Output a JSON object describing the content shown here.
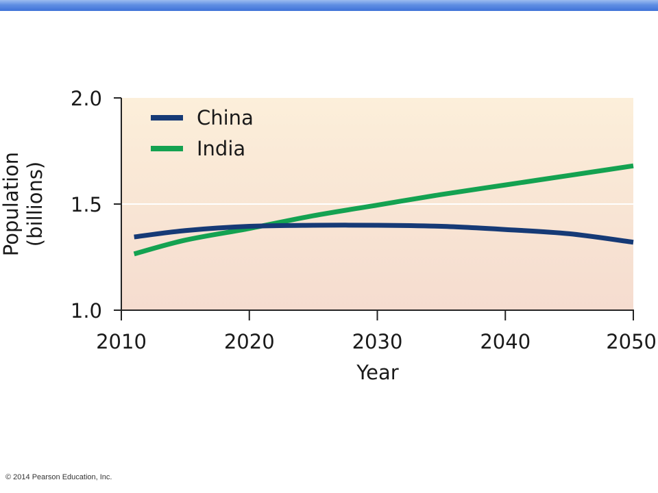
{
  "footer": {
    "copyright": "© 2014 Pearson Education, Inc."
  },
  "colors": {
    "china": "#163a76",
    "india": "#14a251",
    "plot_top": "#fcefda",
    "plot_bottom": "#f5dccf",
    "gridline": "#ffffff"
  },
  "chart_data": {
    "type": "line",
    "title": "",
    "xlabel": "Year",
    "ylabel": "Population\n(billions)",
    "xlim": [
      2010,
      2050
    ],
    "ylim": [
      1.0,
      2.0
    ],
    "xticks": [
      2010,
      2020,
      2030,
      2040,
      2050
    ],
    "xtick_labels": [
      "2010",
      "2020",
      "2030",
      "2040",
      "2050"
    ],
    "yticks": [
      1.0,
      1.5,
      2.0
    ],
    "ytick_labels": [
      "1.0",
      "1.5",
      "2.0"
    ],
    "grid": "horizontal line at 1.5",
    "legend_position": "top-left",
    "series": [
      {
        "name": "China",
        "color": "#163a76",
        "x": [
          2011,
          2015,
          2020,
          2025,
          2030,
          2035,
          2040,
          2045,
          2050
        ],
        "y": [
          1.345,
          1.375,
          1.395,
          1.4,
          1.4,
          1.395,
          1.38,
          1.36,
          1.32
        ]
      },
      {
        "name": "India",
        "color": "#14a251",
        "x": [
          2011,
          2015,
          2020,
          2025,
          2030,
          2035,
          2040,
          2045,
          2050
        ],
        "y": [
          1.265,
          1.33,
          1.385,
          1.445,
          1.495,
          1.545,
          1.59,
          1.635,
          1.68
        ]
      }
    ]
  }
}
